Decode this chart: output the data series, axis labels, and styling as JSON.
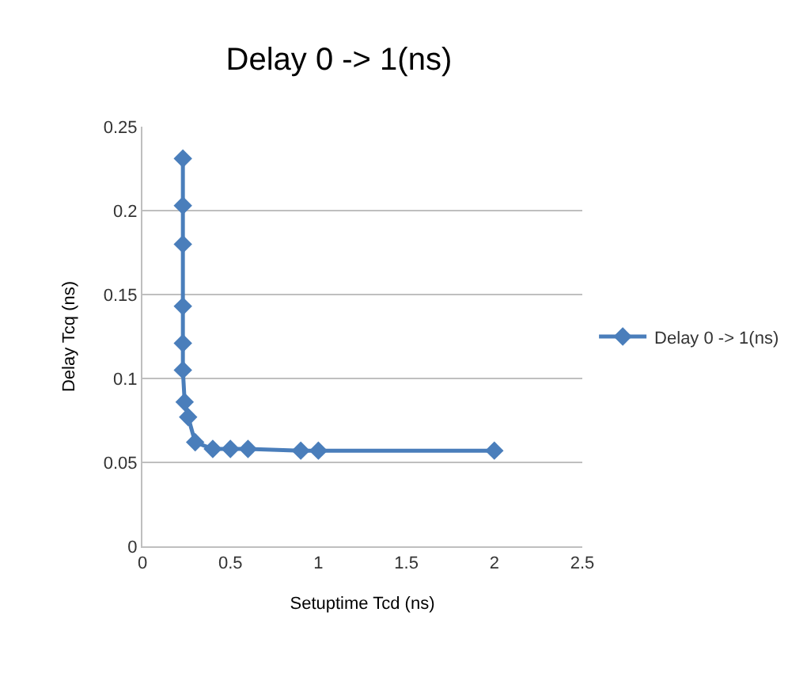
{
  "chart_data": {
    "type": "line",
    "title": "Delay 0 -> 1(ns)",
    "xlabel": "Setuptime Tcd (ns)",
    "ylabel": "Delay Tcq (ns)",
    "series": [
      {
        "name": "Delay 0 -> 1(ns)",
        "color": "#4a7ebb",
        "x": [
          0.23,
          0.23,
          0.23,
          0.23,
          0.23,
          0.23,
          0.24,
          0.26,
          0.3,
          0.4,
          0.5,
          0.6,
          0.9,
          1.0,
          2.0
        ],
        "values": [
          0.231,
          0.203,
          0.18,
          0.143,
          0.121,
          0.105,
          0.086,
          0.077,
          0.062,
          0.058,
          0.058,
          0.058,
          0.057,
          0.057,
          0.057
        ]
      }
    ],
    "xlim": [
      0,
      2.5
    ],
    "xticks": [
      0,
      0.5,
      1,
      1.5,
      2,
      2.5
    ],
    "ylim": [
      0,
      0.25
    ],
    "yticks": [
      0,
      0.05,
      0.1,
      0.15,
      0.2,
      0.25
    ],
    "grid": "y",
    "legend": "right",
    "marker": "diamond",
    "line_style": "solid"
  }
}
